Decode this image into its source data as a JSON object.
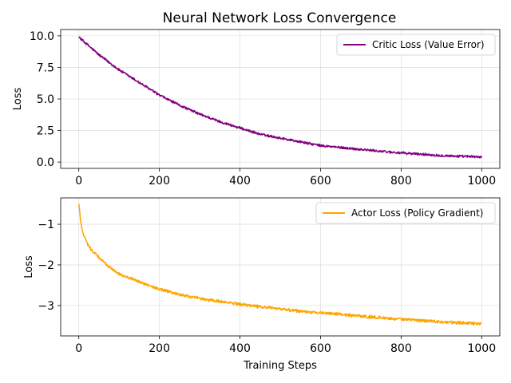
{
  "chart_data": [
    {
      "type": "line",
      "title": "Neural Network Loss Convergence",
      "xlabel": "",
      "ylabel": "Loss",
      "xlim": [
        -45,
        1045
      ],
      "ylim": [
        -0.5,
        10.5
      ],
      "xticks": [
        0,
        200,
        400,
        600,
        800,
        1000
      ],
      "xtick_labels": [
        "0",
        "200",
        "400",
        "600",
        "800",
        "1000"
      ],
      "yticks": [
        0,
        2.5,
        5,
        7.5,
        10
      ],
      "ytick_labels": [
        "0.0",
        "2.5",
        "5.0",
        "7.5",
        "10.0"
      ],
      "grid": true,
      "legend": "top-right",
      "series": [
        {
          "name": "Critic Loss (Value Error)",
          "color": "#800080",
          "x": [
            0,
            50,
            100,
            150,
            200,
            250,
            300,
            350,
            400,
            450,
            500,
            550,
            600,
            650,
            700,
            750,
            800,
            850,
            900,
            950,
            1000
          ],
          "y": [
            9.9,
            8.5,
            7.3,
            6.3,
            5.3,
            4.5,
            3.8,
            3.2,
            2.7,
            2.2,
            1.9,
            1.6,
            1.3,
            1.15,
            1.0,
            0.85,
            0.72,
            0.62,
            0.52,
            0.45,
            0.4
          ]
        }
      ]
    },
    {
      "type": "line",
      "title": "",
      "xlabel": "Training Steps",
      "ylabel": "Loss",
      "xlim": [
        -45,
        1045
      ],
      "ylim": [
        -3.75,
        -0.35
      ],
      "xticks": [
        0,
        200,
        400,
        600,
        800,
        1000
      ],
      "xtick_labels": [
        "0",
        "200",
        "400",
        "600",
        "800",
        "1000"
      ],
      "yticks": [
        -1,
        -2,
        -3
      ],
      "ytick_labels": [
        "−1",
        "−2",
        "−3"
      ],
      "grid": true,
      "legend": "top-right",
      "series": [
        {
          "name": "Actor Loss (Policy Gradient)",
          "color": "#FFA500",
          "x": [
            0,
            5,
            10,
            20,
            30,
            50,
            75,
            100,
            150,
            200,
            250,
            300,
            350,
            400,
            450,
            500,
            550,
            600,
            650,
            700,
            750,
            800,
            850,
            900,
            950,
            1000
          ],
          "y": [
            -0.5,
            -0.95,
            -1.2,
            -1.45,
            -1.62,
            -1.82,
            -2.05,
            -2.22,
            -2.42,
            -2.6,
            -2.73,
            -2.83,
            -2.9,
            -2.97,
            -3.03,
            -3.09,
            -3.14,
            -3.18,
            -3.22,
            -3.26,
            -3.3,
            -3.34,
            -3.37,
            -3.4,
            -3.43,
            -3.45
          ]
        }
      ]
    }
  ]
}
